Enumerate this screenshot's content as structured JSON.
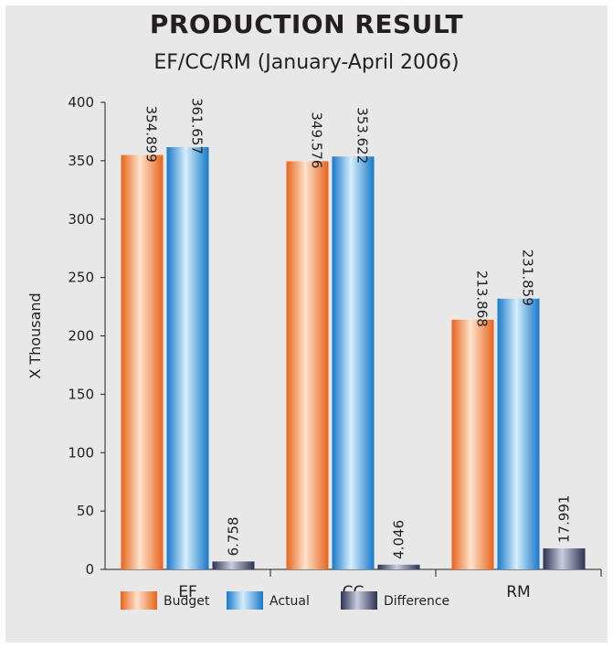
{
  "colors": {
    "Budget": "#f07a2a",
    "Actual": "#1f8fdc",
    "Difference": "#3b4263"
  },
  "chart_data": {
    "type": "bar",
    "title": "PRODUCTION RESULT",
    "subtitle": "EF/CC/RM (January-April 2006)",
    "xlabel": "",
    "ylabel": "X Thousand",
    "ylim": [
      0,
      400
    ],
    "yticks": [
      0,
      50,
      100,
      150,
      200,
      250,
      300,
      350,
      400
    ],
    "categories": [
      "EF",
      "CC",
      "RM"
    ],
    "series": [
      {
        "name": "Budget",
        "values": [
          354.899,
          349.576,
          213.868
        ],
        "labels": [
          "354.899",
          "349.576",
          "213.868"
        ]
      },
      {
        "name": "Actual",
        "values": [
          361.657,
          353.622,
          231.859
        ],
        "labels": [
          "361.657",
          "353.622",
          "231.859"
        ]
      },
      {
        "name": "Difference",
        "values": [
          6.758,
          4.046,
          17.991
        ],
        "labels": [
          "6.758",
          "4.046",
          "17.991"
        ]
      }
    ],
    "legend": {
      "position": "bottom",
      "entries": [
        "Budget",
        "Actual",
        "Difference"
      ]
    },
    "grid": false
  }
}
